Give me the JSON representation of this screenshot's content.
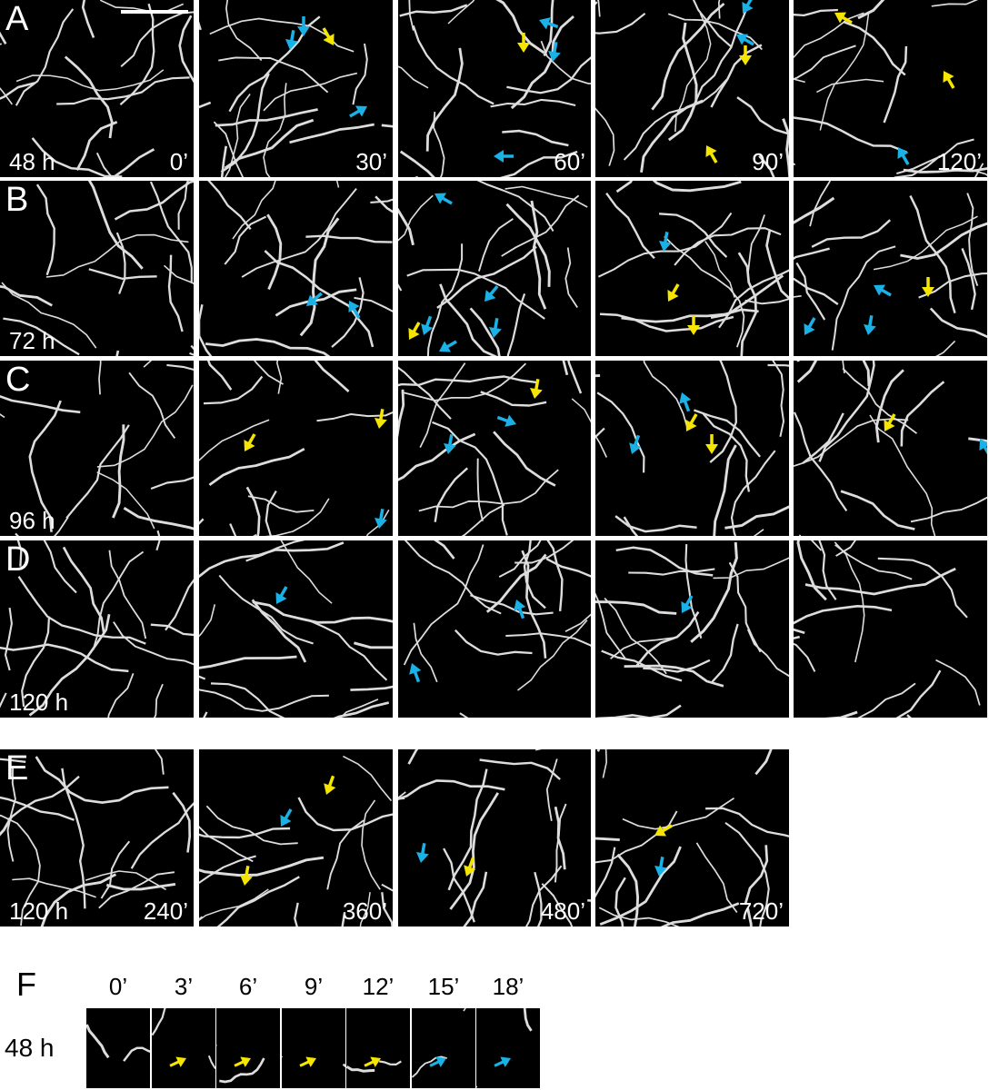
{
  "figure": {
    "arrow_colors": {
      "cyan": "#1ab2e6",
      "yellow": "#f5e500"
    },
    "scale_bar": true,
    "rows": [
      {
        "letter": "A",
        "hours": "48 h",
        "times": [
          "0’",
          "30’",
          "60’",
          "90’",
          "120’"
        ]
      },
      {
        "letter": "B",
        "hours": "72 h",
        "times": [
          "",
          "",
          "",
          "",
          ""
        ]
      },
      {
        "letter": "C",
        "hours": "96 h",
        "times": [
          "",
          "",
          "",
          "",
          ""
        ]
      },
      {
        "letter": "D",
        "hours": "120 h",
        "times": [
          "",
          "",
          "",
          "",
          ""
        ]
      },
      {
        "letter": "E",
        "hours": "120 h",
        "times": [
          "240’",
          "360’",
          "480’",
          "720’"
        ]
      }
    ],
    "row_f": {
      "letter": "F",
      "hours": "48 h",
      "times": [
        "0’",
        "3’",
        "6’",
        "9’",
        "12’",
        "15’",
        "18’"
      ]
    }
  }
}
